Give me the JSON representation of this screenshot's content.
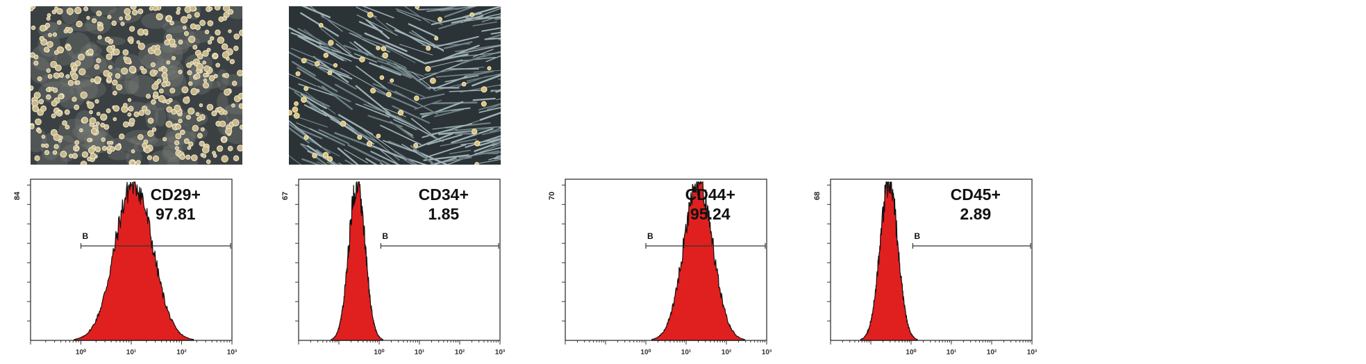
{
  "micrographs": [
    {
      "id": "rounded-cells",
      "style": "round"
    },
    {
      "id": "spindle-cells",
      "style": "spindle"
    }
  ],
  "chart_data": [
    {
      "type": "area",
      "marker": "CD29+",
      "value": "97.81",
      "ymax_label": "84",
      "ylim": [
        0,
        84
      ],
      "xscale": "log",
      "xlim": [
        0.1,
        1000
      ],
      "xticks": [
        "10⁰",
        "10¹",
        "10²",
        "10³"
      ],
      "gate": {
        "label": "B",
        "from": 1.0,
        "to": 1000
      },
      "peak": {
        "center_log": 1.05,
        "sigma_log": 0.37,
        "height": 84
      },
      "color": "#e0201f"
    },
    {
      "type": "area",
      "marker": "CD34+",
      "value": "1.85",
      "ymax_label": "67",
      "ylim": [
        0,
        67
      ],
      "xscale": "log",
      "xlim": [
        0.01,
        1000
      ],
      "xticks": [
        "10⁰",
        "10¹",
        "10²",
        "10³"
      ],
      "gate": {
        "label": "B",
        "from": 1.1,
        "to": 1000
      },
      "peak": {
        "center_log": -0.55,
        "sigma_log": 0.2,
        "height": 67
      },
      "color": "#e0201f"
    },
    {
      "type": "area",
      "marker": "CD44+",
      "value": "95.24",
      "ymax_label": "70",
      "ylim": [
        0,
        70
      ],
      "xscale": "log",
      "xlim": [
        0.01,
        1000
      ],
      "xticks": [
        "10⁰",
        "10¹",
        "10²",
        "10³"
      ],
      "gate": {
        "label": "B",
        "from": 1.0,
        "to": 1000
      },
      "peak": {
        "center_log": 1.3,
        "sigma_log": 0.36,
        "height": 70
      },
      "color": "#e0201f"
    },
    {
      "type": "area",
      "marker": "CD45+",
      "value": "2.89",
      "ymax_label": "68",
      "ylim": [
        0,
        68
      ],
      "xscale": "log",
      "xlim": [
        0.01,
        1000
      ],
      "xticks": [
        "10⁰",
        "10¹",
        "10²",
        "10³"
      ],
      "gate": {
        "label": "B",
        "from": 1.1,
        "to": 1000
      },
      "peak": {
        "center_log": -0.55,
        "sigma_log": 0.22,
        "height": 68
      },
      "color": "#e0201f"
    }
  ]
}
